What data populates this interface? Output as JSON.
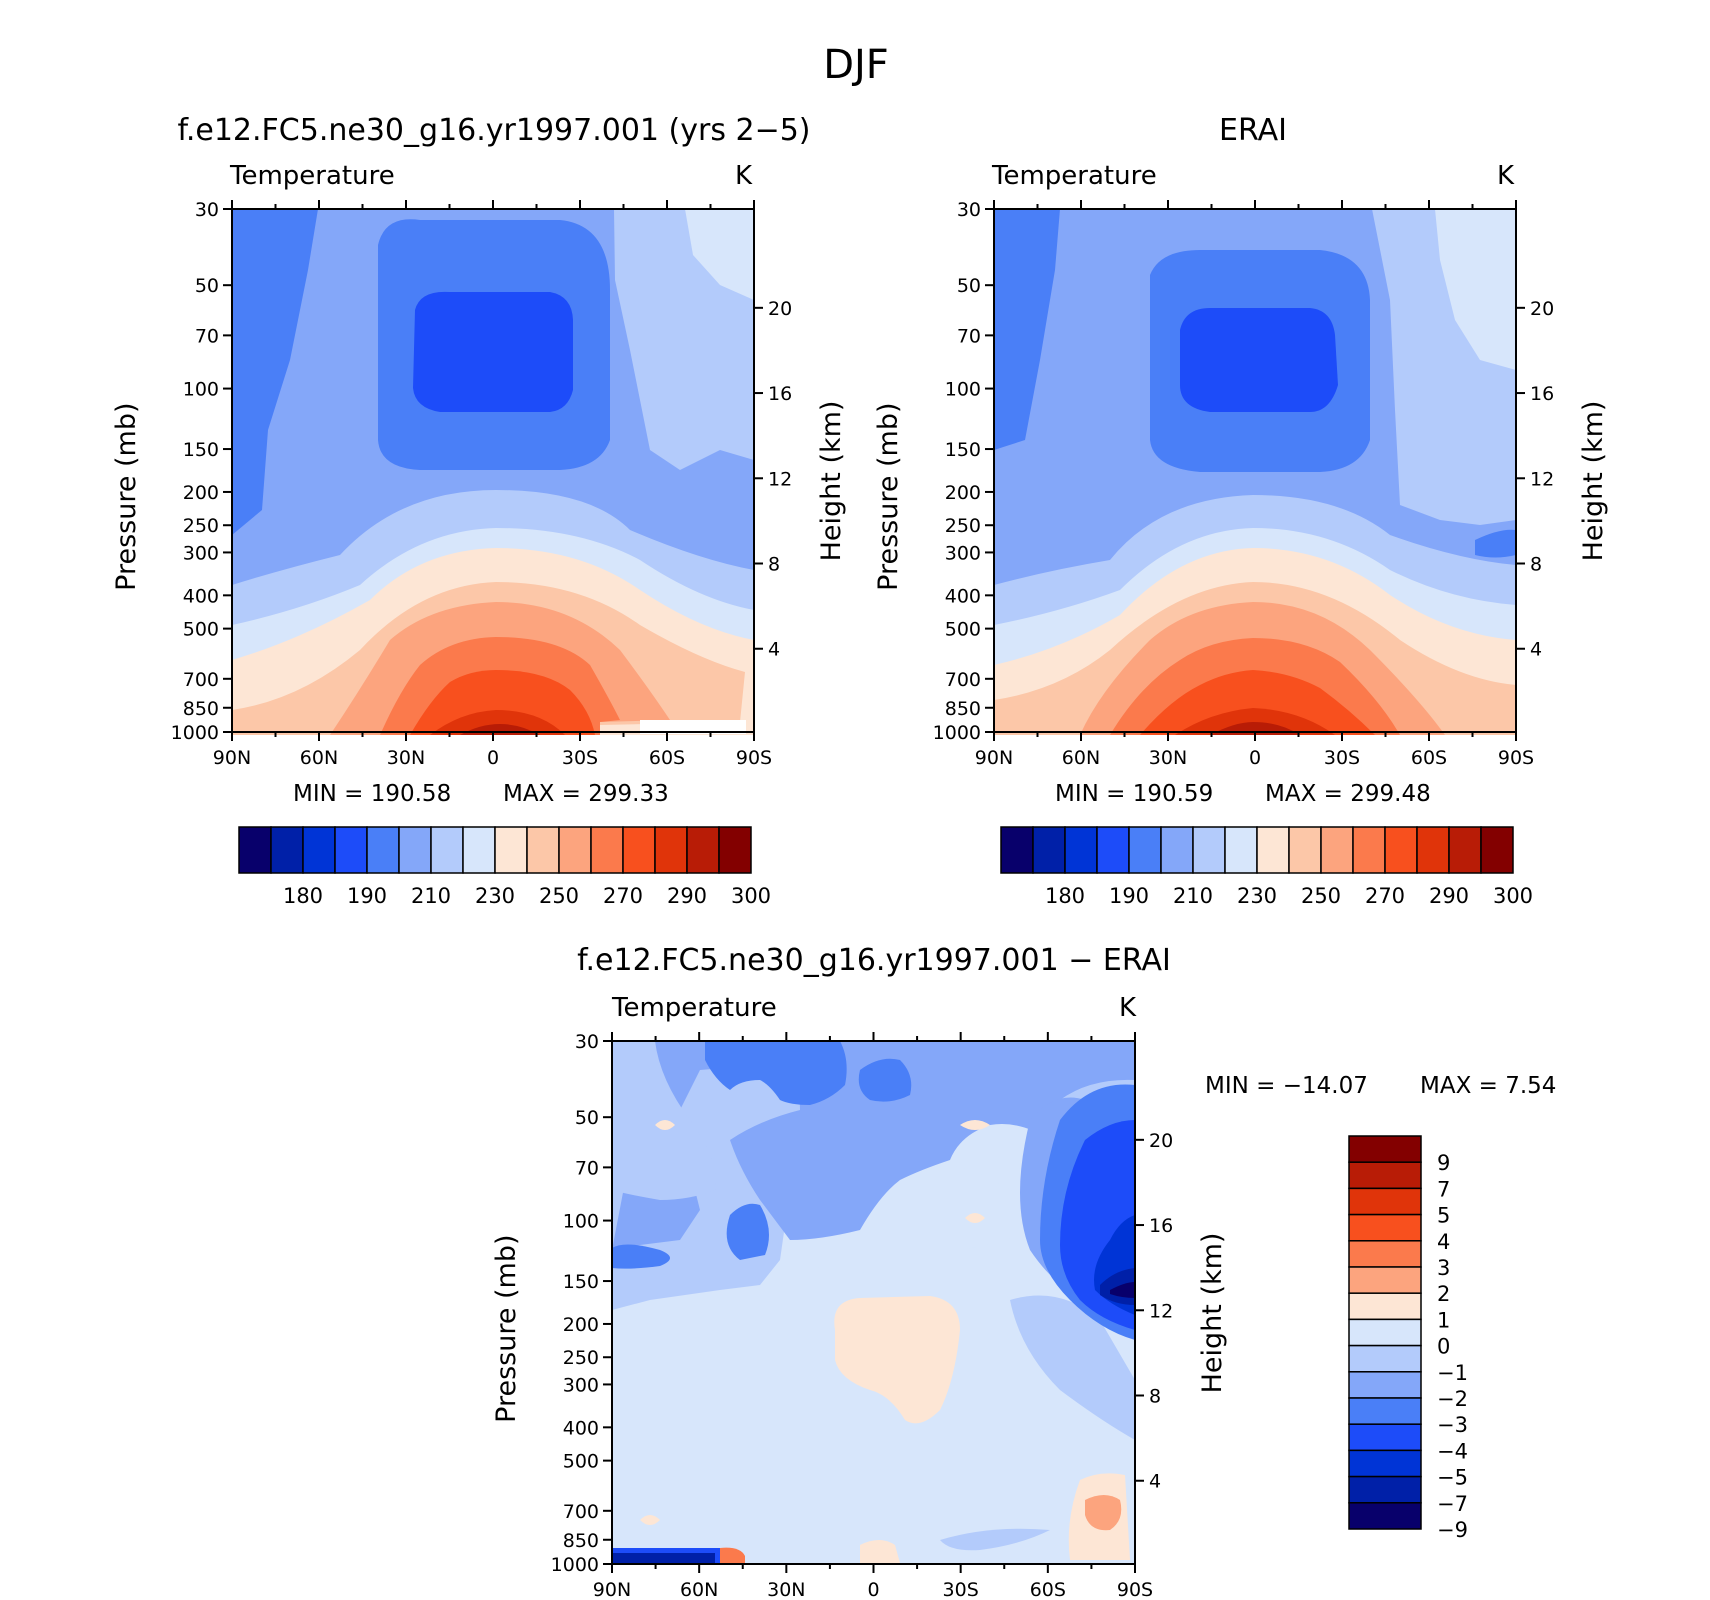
{
  "page_title": "DJF",
  "units": "K",
  "variable_label": "Temperature",
  "axes": {
    "ylabel_left": "Pressure (mb)",
    "ylabel_right": "Height (km)",
    "pressure_ticks": [
      "30",
      "50",
      "70",
      "100",
      "150",
      "200",
      "250",
      "300",
      "400",
      "500",
      "700",
      "850",
      "1000"
    ],
    "height_ticks": [
      "20",
      "16",
      "12",
      "8",
      "4"
    ],
    "lat_ticks": [
      "90N",
      "60N",
      "30N",
      "0",
      "30S",
      "60S",
      "90S"
    ]
  },
  "chart_data": [
    {
      "type": "heatmap",
      "title": "f.e12.FC5.ne30_g16.yr1997.001 (yrs 2−5)",
      "subtitle": "Temperature",
      "units": "K",
      "xlabel": "",
      "ylabel": "Pressure (mb)",
      "ylabel_right": "Height (km)",
      "x": [
        "90N",
        "60N",
        "30N",
        "0",
        "30S",
        "60S",
        "90S"
      ],
      "y_scale": "log",
      "ylim": [
        1000,
        30
      ],
      "stats": {
        "min_label": "MIN = 190.58",
        "max_label": "MAX = 299.33",
        "min": 190.58,
        "max": 299.33
      },
      "colorbar": {
        "orientation": "horizontal",
        "labels": [
          "180",
          "190",
          "210",
          "230",
          "250",
          "270",
          "290",
          "300"
        ],
        "colors": [
          "#08006b",
          "#0020a8",
          "#0034d6",
          "#1d4cf9",
          "#4a7ff7",
          "#84a7f9",
          "#b3cbfb",
          "#d7e6fb",
          "#fde6d5",
          "#fcc7a8",
          "#fca47e",
          "#fb7a4c",
          "#f8501e",
          "#e0340a",
          "#b81c06",
          "#830000"
        ]
      }
    },
    {
      "type": "heatmap",
      "title": "ERAI",
      "subtitle": "Temperature",
      "units": "K",
      "xlabel": "",
      "ylabel": "Pressure (mb)",
      "ylabel_right": "Height (km)",
      "x": [
        "90N",
        "60N",
        "30N",
        "0",
        "30S",
        "60S",
        "90S"
      ],
      "y_scale": "log",
      "ylim": [
        1000,
        30
      ],
      "stats": {
        "min_label": "MIN = 190.59",
        "max_label": "MAX = 299.48",
        "min": 190.59,
        "max": 299.48
      },
      "colorbar": {
        "orientation": "horizontal",
        "labels": [
          "180",
          "190",
          "210",
          "230",
          "250",
          "270",
          "290",
          "300"
        ],
        "colors": [
          "#08006b",
          "#0020a8",
          "#0034d6",
          "#1d4cf9",
          "#4a7ff7",
          "#84a7f9",
          "#b3cbfb",
          "#d7e6fb",
          "#fde6d5",
          "#fcc7a8",
          "#fca47e",
          "#fb7a4c",
          "#f8501e",
          "#e0340a",
          "#b81c06",
          "#830000"
        ]
      }
    },
    {
      "type": "heatmap",
      "title": "f.e12.FC5.ne30_g16.yr1997.001 − ERAI",
      "subtitle": "Temperature",
      "units": "K",
      "xlabel": "",
      "ylabel": "Pressure (mb)",
      "ylabel_right": "Height (km)",
      "x": [
        "90N",
        "60N",
        "30N",
        "0",
        "30S",
        "60S",
        "90S"
      ],
      "y_scale": "log",
      "ylim": [
        1000,
        30
      ],
      "stats": {
        "min_label": "MIN = −14.07",
        "max_label": "MAX =    7.54",
        "min": -14.07,
        "max": 7.54
      },
      "colorbar": {
        "orientation": "vertical",
        "labels": [
          "9",
          "7",
          "5",
          "4",
          "3",
          "2",
          "1",
          "0",
          "−1",
          "−2",
          "−3",
          "−4",
          "−5",
          "−7",
          "−9"
        ],
        "colors": [
          "#830000",
          "#b81c06",
          "#e0340a",
          "#f8501e",
          "#fb7a4c",
          "#fca47e",
          "#fde6d5",
          "#d7e6fb",
          "#b3cbfb",
          "#84a7f9",
          "#4a7ff7",
          "#1d4cf9",
          "#0034d6",
          "#0020a8",
          "#08006b"
        ]
      }
    }
  ]
}
